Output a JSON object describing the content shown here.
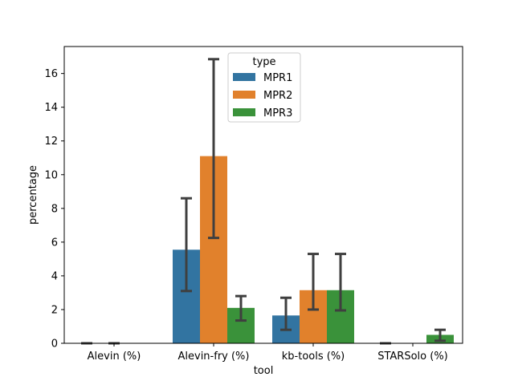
{
  "chart_data": {
    "type": "bar",
    "title": "",
    "xlabel": "tool",
    "ylabel": "percentage",
    "categories": [
      "Alevin (%)",
      "Alevin-fry (%)",
      "kb-tools (%)",
      "STARSolo (%)"
    ],
    "ylim": [
      0,
      17.6
    ],
    "yticks": [
      0,
      2,
      4,
      6,
      8,
      10,
      12,
      14,
      16
    ],
    "grid": false,
    "legend": {
      "title": "type",
      "placement": "top-center"
    },
    "series": [
      {
        "name": "MPR1",
        "color": "#3274a1",
        "values": [
          0.0,
          5.55,
          1.65,
          0.0
        ],
        "error_low": [
          0.0,
          3.1,
          0.8,
          0.0
        ],
        "error_high": [
          0.0,
          8.6,
          2.7,
          0.0
        ]
      },
      {
        "name": "MPR2",
        "color": "#e1812c",
        "values": [
          0.0,
          11.1,
          3.15,
          null
        ],
        "error_low": [
          0.0,
          6.25,
          2.0,
          null
        ],
        "error_high": [
          0.0,
          16.85,
          5.3,
          null
        ]
      },
      {
        "name": "MPR3",
        "color": "#3a923a",
        "values": [
          null,
          2.1,
          3.15,
          0.5
        ],
        "error_low": [
          null,
          1.35,
          1.95,
          0.15
        ],
        "error_high": [
          null,
          2.8,
          5.3,
          0.8
        ]
      }
    ]
  }
}
